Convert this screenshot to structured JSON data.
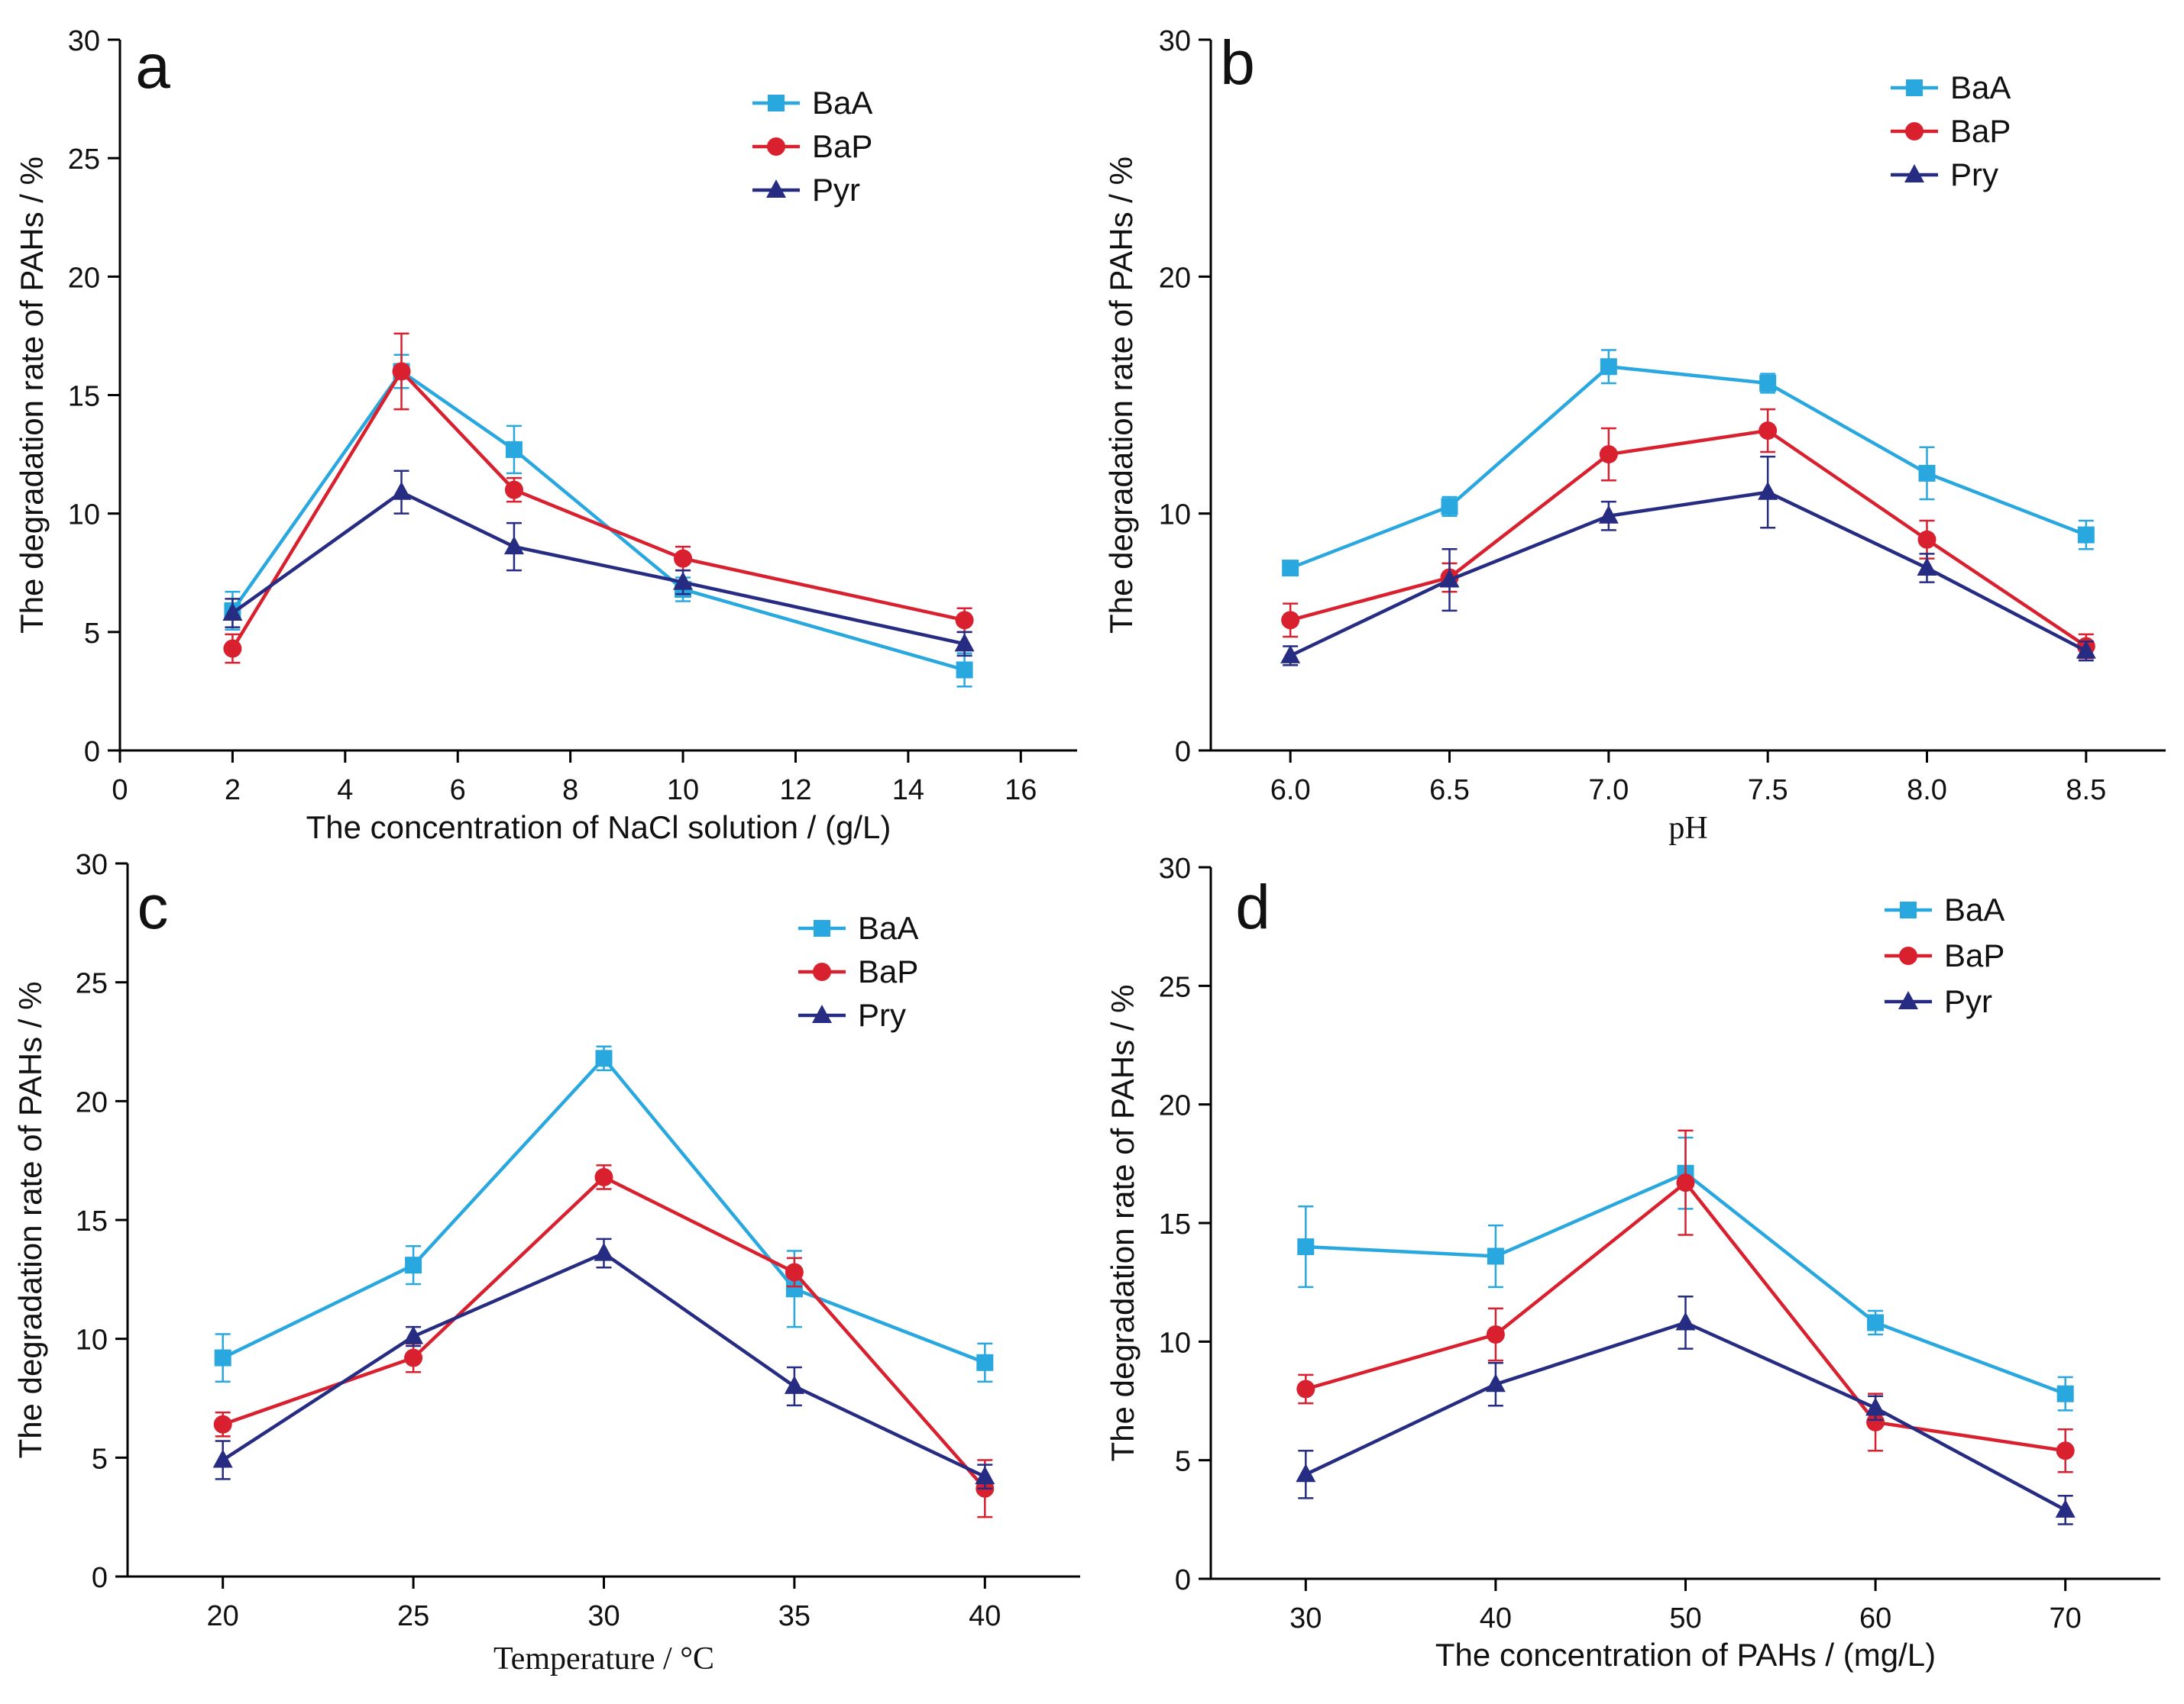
{
  "figure": {
    "colors": {
      "BaA": "#29a8e0",
      "BaP": "#d9202e",
      "Pyr": "#272c83",
      "axis": "#000000"
    }
  },
  "chart_data": [
    {
      "panel_label": "a",
      "type": "line",
      "xlabel": "The concentration of NaCl solution / (g/L)",
      "ylabel": "The degradation rate of PAHs / %",
      "xlim": [
        0,
        17
      ],
      "ylim": [
        0,
        30
      ],
      "xticks": [
        0,
        2,
        4,
        6,
        8,
        10,
        12,
        14,
        16
      ],
      "xtick_labels": [
        "0",
        "2",
        "4",
        "6",
        "8",
        "10",
        "12",
        "14",
        "16"
      ],
      "yticks": [
        0,
        5,
        10,
        15,
        20,
        25,
        30
      ],
      "ytick_labels": [
        "0",
        "5",
        "10",
        "15",
        "20",
        "25",
        "30"
      ],
      "x": [
        2,
        5,
        7,
        10,
        15
      ],
      "legend": [
        "BaA",
        "BaP",
        "Pyr"
      ],
      "series": [
        {
          "name": "BaA",
          "color": "#29a8e0",
          "marker": "square",
          "values": [
            5.9,
            16.0,
            12.7,
            6.8,
            3.4
          ],
          "errors": [
            0.8,
            0.7,
            1.0,
            0.5,
            0.7
          ]
        },
        {
          "name": "BaP",
          "color": "#d9202e",
          "marker": "circle",
          "values": [
            4.3,
            16.0,
            11.0,
            8.1,
            5.5
          ],
          "errors": [
            0.6,
            1.6,
            0.5,
            0.5,
            0.5
          ]
        },
        {
          "name": "Pyr",
          "color": "#272c83",
          "marker": "triangle",
          "values": [
            5.8,
            10.9,
            8.6,
            7.1,
            4.5
          ],
          "errors": [
            0.6,
            0.9,
            1.0,
            0.5,
            0.5
          ]
        }
      ]
    },
    {
      "panel_label": "b",
      "type": "line",
      "xlabel": "pH",
      "ylabel": "The degradation rate of PAHs / %",
      "xlim": [
        5.75,
        8.75
      ],
      "ylim": [
        0,
        30
      ],
      "xticks": [
        6.0,
        6.5,
        7.0,
        7.5,
        8.0,
        8.5
      ],
      "xtick_labels": [
        "6.0",
        "6.5",
        "7.0",
        "7.5",
        "8.0",
        "8.5"
      ],
      "yticks": [
        0,
        10,
        20,
        30
      ],
      "ytick_labels": [
        "0",
        "10",
        "20",
        "30"
      ],
      "x": [
        6.0,
        6.5,
        7.0,
        7.5,
        8.0,
        8.5
      ],
      "legend": [
        "BaA",
        "BaP",
        "Pry"
      ],
      "series": [
        {
          "name": "BaA",
          "color": "#29a8e0",
          "marker": "square",
          "values": [
            7.7,
            10.3,
            16.2,
            15.5,
            11.7,
            9.1
          ],
          "errors": [
            0.3,
            0.4,
            0.7,
            0.4,
            1.1,
            0.6
          ]
        },
        {
          "name": "BaP",
          "color": "#d9202e",
          "marker": "circle",
          "values": [
            5.5,
            7.3,
            12.5,
            13.5,
            8.9,
            4.4
          ],
          "errors": [
            0.7,
            0.6,
            1.1,
            0.9,
            0.8,
            0.5
          ]
        },
        {
          "name": "Pry",
          "color": "#272c83",
          "marker": "triangle",
          "values": [
            4.0,
            7.2,
            9.9,
            10.9,
            7.7,
            4.2
          ],
          "errors": [
            0.4,
            1.3,
            0.6,
            1.5,
            0.6,
            0.4
          ]
        }
      ]
    },
    {
      "panel_label": "c",
      "type": "line",
      "xlabel": "Temperature / °C",
      "ylabel": "The degradation rate of PAHs / %",
      "xlim": [
        17.5,
        42.5
      ],
      "ylim": [
        0,
        30
      ],
      "xticks": [
        20,
        25,
        30,
        35,
        40
      ],
      "xtick_labels": [
        "20",
        "25",
        "30",
        "35",
        "40"
      ],
      "yticks": [
        0,
        5,
        10,
        15,
        20,
        25,
        30
      ],
      "ytick_labels": [
        "0",
        "5",
        "10",
        "15",
        "20",
        "25",
        "30"
      ],
      "x": [
        20,
        25,
        30,
        35,
        40
      ],
      "legend": [
        "BaA",
        "BaP",
        "Pry"
      ],
      "series": [
        {
          "name": "BaA",
          "color": "#29a8e0",
          "marker": "square",
          "values": [
            9.2,
            13.1,
            21.8,
            12.1,
            9.0
          ],
          "errors": [
            1.0,
            0.8,
            0.5,
            1.6,
            0.8
          ]
        },
        {
          "name": "BaP",
          "color": "#d9202e",
          "marker": "circle",
          "values": [
            6.4,
            9.2,
            16.8,
            12.8,
            3.7
          ],
          "errors": [
            0.5,
            0.6,
            0.5,
            0.6,
            1.2
          ]
        },
        {
          "name": "Pry",
          "color": "#272c83",
          "marker": "triangle",
          "values": [
            4.9,
            10.1,
            13.6,
            8.0,
            4.2
          ],
          "errors": [
            0.8,
            0.4,
            0.6,
            0.8,
            0.5
          ]
        }
      ]
    },
    {
      "panel_label": "d",
      "type": "line",
      "xlabel": "The concentration of PAHs / (mg/L)",
      "ylabel": "The degradation rate of PAHs / %",
      "xlim": [
        25,
        75
      ],
      "ylim": [
        0,
        30
      ],
      "xticks": [
        30,
        40,
        50,
        60,
        70
      ],
      "xtick_labels": [
        "30",
        "40",
        "50",
        "60",
        "70"
      ],
      "yticks": [
        0,
        5,
        10,
        15,
        20,
        25,
        30
      ],
      "ytick_labels": [
        "0",
        "5",
        "10",
        "15",
        "20",
        "25",
        "30"
      ],
      "x": [
        30,
        40,
        50,
        60,
        70
      ],
      "legend": [
        "BaA",
        "BaP",
        "Pyr"
      ],
      "series": [
        {
          "name": "BaA",
          "color": "#29a8e0",
          "marker": "square",
          "values": [
            14.0,
            13.6,
            17.1,
            10.8,
            7.8
          ],
          "errors": [
            1.7,
            1.3,
            1.5,
            0.5,
            0.7
          ]
        },
        {
          "name": "BaP",
          "color": "#d9202e",
          "marker": "circle",
          "values": [
            8.0,
            10.3,
            16.7,
            6.6,
            5.4
          ],
          "errors": [
            0.6,
            1.1,
            2.2,
            1.2,
            0.9
          ]
        },
        {
          "name": "Pyr",
          "color": "#272c83",
          "marker": "triangle",
          "values": [
            4.4,
            8.2,
            10.8,
            7.2,
            2.9
          ],
          "errors": [
            1.0,
            0.9,
            1.1,
            0.5,
            0.6
          ]
        }
      ]
    }
  ]
}
